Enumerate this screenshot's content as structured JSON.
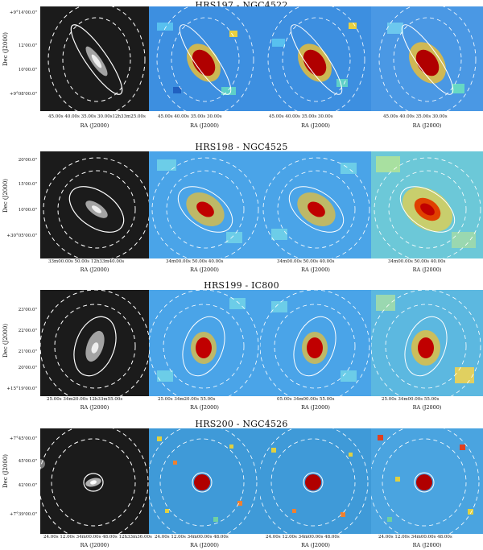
{
  "figure": {
    "rows": [
      {
        "title": "HRS197 - NGC4522",
        "ylabel": "Dec (J2000)",
        "yticks": [
          "+9°14'00.0\"",
          "12'00.0\"",
          "10'00.0\"",
          "+9°08'00.0\""
        ],
        "xticks": [
          "45.00s  40.00s  35.00s 30.00s12h33m25.00s",
          "45.00s  40.00s  35.00s  30.00s",
          "45.00s  40.00s  35.00s  30.00s",
          "45.00s  40.00s  35.00s  30.00s"
        ],
        "xlabels": [
          "RA (J2000)",
          "RA (J2000)",
          "RA (J2000)",
          "RA (J2000)"
        ]
      },
      {
        "title": "HRS198 - NGC4525",
        "ylabel": "Dec (J2000)",
        "yticks": [
          "20'00.0\"",
          "15'00.0\"",
          "10'00.0\"",
          "+30°05'00.0\""
        ],
        "xticks": [
          "33m00.00s  50.00s  12h33m40.00s",
          "34m00.00s  50.00s  40.00s",
          "34m00.00s  50.00s  40.00s",
          "34m00.00s  50.00s  40.00s"
        ],
        "xlabels": [
          "RA (J2000)",
          "RA (J2000)",
          "RA (J2000)",
          "RA (J2000)"
        ]
      },
      {
        "title": "HRS199 - IC800",
        "ylabel": "Dec (J2000)",
        "yticks": [
          "23'00.0\"",
          "22'00.0\"",
          "21'00.0\"",
          "20'00.0\"",
          "+15°19'00.0\""
        ],
        "xticks": [
          "25.00s  34m20.00s  12h33m55.00s",
          "25.00s  34m20.00s  55.00s",
          "05.00s  34m00.00s  55.00s",
          "25.00s  34m00.00s  55.00s"
        ],
        "xlabels": [
          "RA (J2000)",
          "RA (J2000)",
          "RA (J2000)",
          "RA (J2000)"
        ]
      },
      {
        "title": "HRS200 - NGC4526",
        "ylabel": "Dec (J2000)",
        "yticks": [
          "+7°45'00.0\"",
          "45'00.0\"",
          "42'00.0\"",
          "+7°39'00.0\""
        ],
        "xticks": [
          "24.00s  12.00s 34m00.00s  48.00s 12h33m36.00s",
          "24.00s  12.00s  34m00.00s  48.00s",
          "24.00s  12.00s  34m00.00s  48.00s",
          "24.00s  12.00s  34m00.00s  48.00s"
        ],
        "xlabels": [
          "RA (J2000)",
          "RA (J2000)",
          "RA (J2000)",
          "RA (J2000)"
        ]
      }
    ],
    "colors": {
      "map_background": "#3d8fe0",
      "optical_background": "#1b1b1b",
      "galaxy_core": "#8a0000",
      "ellipse": "#ffffff"
    }
  }
}
